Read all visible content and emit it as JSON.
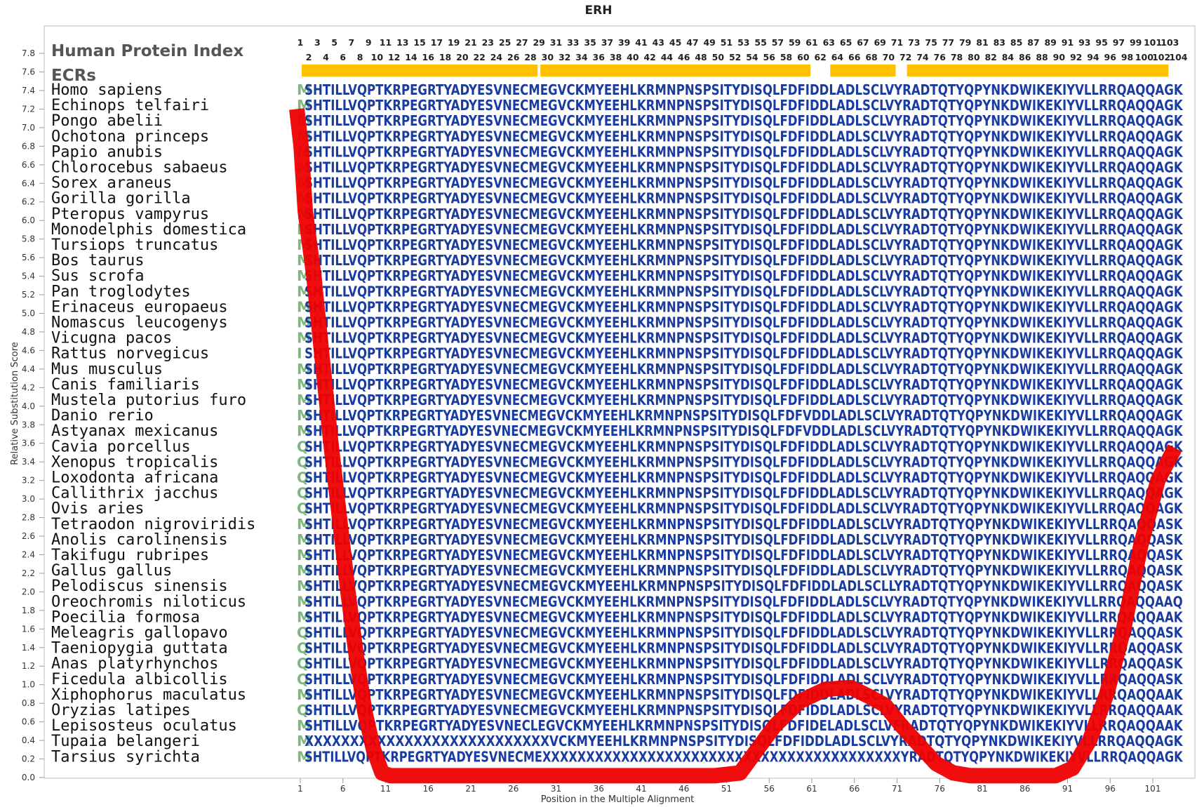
{
  "chart_data": {
    "type": "line",
    "title": "ERH",
    "xlabel": "Position in the Multiple Alignment",
    "ylabel": "Relative Substitution Score",
    "ylim": [
      0.0,
      7.8
    ],
    "xlim": [
      1,
      104
    ],
    "y_ticks": [
      "0.0",
      "0.2",
      "0.4",
      "0.6",
      "0.8",
      "1.0",
      "1.2",
      "1.4",
      "1.6",
      "1.8",
      "2.0",
      "2.2",
      "2.4",
      "2.6",
      "2.8",
      "3.0",
      "3.2",
      "3.4",
      "3.6",
      "3.8",
      "4.0",
      "4.2",
      "4.4",
      "4.6",
      "4.8",
      "5.0",
      "5.2",
      "5.4",
      "5.6",
      "5.8",
      "6.0",
      "6.2",
      "6.4",
      "6.6",
      "6.8",
      "7.0",
      "7.2",
      "7.4",
      "7.6",
      "7.8"
    ],
    "x_ticks": [
      "1",
      "6",
      "11",
      "16",
      "21",
      "26",
      "31",
      "36",
      "41",
      "46",
      "51",
      "56",
      "61",
      "66",
      "71",
      "76",
      "81",
      "86",
      "91",
      "96",
      "101"
    ],
    "index_row_top": [
      "1",
      "3",
      "5",
      "7",
      "9",
      "11",
      "13",
      "15",
      "17",
      "19",
      "21",
      "23",
      "25",
      "27",
      "29",
      "31",
      "33",
      "35",
      "37",
      "39",
      "41",
      "43",
      "45",
      "47",
      "49",
      "51",
      "53",
      "55",
      "57",
      "59",
      "61",
      "63",
      "65",
      "67",
      "69",
      "71",
      "73",
      "75",
      "77",
      "79",
      "81",
      "83",
      "85",
      "87",
      "89",
      "91",
      "93",
      "95",
      "97",
      "99",
      "101",
      "103"
    ],
    "index_row_bottom": [
      "2",
      "4",
      "6",
      "8",
      "10",
      "12",
      "14",
      "16",
      "18",
      "20",
      "22",
      "24",
      "26",
      "28",
      "30",
      "32",
      "34",
      "36",
      "38",
      "40",
      "42",
      "44",
      "46",
      "48",
      "50",
      "52",
      "54",
      "56",
      "58",
      "60",
      "62",
      "64",
      "66",
      "68",
      "70",
      "72",
      "74",
      "76",
      "78",
      "80",
      "82",
      "84",
      "86",
      "88",
      "90",
      "92",
      "94",
      "96",
      "98",
      "100",
      "102",
      "104"
    ],
    "header_index_label": "Human Protein Index",
    "header_ecr_label": "ECRs",
    "ecr_segments": [
      [
        1,
        28
      ],
      [
        29,
        60
      ],
      [
        63,
        70
      ],
      [
        72,
        102
      ]
    ],
    "series": [
      {
        "values_x": [
          1,
          1.5,
          2,
          3,
          4,
          5,
          6,
          7,
          8,
          9,
          10,
          11,
          12,
          14,
          20,
          30,
          40,
          50,
          53,
          55,
          57,
          60,
          63,
          66,
          68,
          70,
          72,
          74,
          76,
          78,
          80,
          82,
          86,
          90,
          92,
          94,
          96,
          98,
          100,
          102,
          104
        ],
        "values_y": [
          7.2,
          6.8,
          6.1,
          5.4,
          4.5,
          3.6,
          2.8,
          2.0,
          1.3,
          0.7,
          0.3,
          0.05,
          0.02,
          0.02,
          0.02,
          0.02,
          0.02,
          0.02,
          0.05,
          0.3,
          0.55,
          0.82,
          0.95,
          0.97,
          0.88,
          0.78,
          0.55,
          0.35,
          0.15,
          0.05,
          0.02,
          0.02,
          0.02,
          0.02,
          0.1,
          0.4,
          0.9,
          1.6,
          2.5,
          3.2,
          3.55
        ]
      }
    ],
    "species": [
      {
        "name": "Homo sapiens",
        "first": "M",
        "seq": "SHTILLVQPTKRPEGRTYADYESVNECMEGVCKMYEEHLKRMNPNSPSITYDISQLFDFIDDLADLSCLVYRADTQTYQPYNKDWIKEKIYVLLRRQAQQAGK"
      },
      {
        "name": "Echinops telfairi",
        "first": "M",
        "seq": "SHTILLVQPTKRPEGRTYADYESVNECMEGVCKMYEEHLKRMNPNSPSITYDISQLFDFIDDLADLSCLVYRADTQTYQPYNKDWIKEKIYVLLRRQAQQAGK"
      },
      {
        "name": "Pongo abelii",
        "first": "M",
        "seq": "SHTILLVQPTKRPEGRTYADYESVNECMEGVCKMYEEHLKRMNPNSPSITYDISQLFDFIDDLADLSCLVYRADTQTYQPYNKDWIKEKIYVLLRRQAQQAGK"
      },
      {
        "name": "Ochotona princeps",
        "first": "M",
        "seq": "SHTILLVQPTKRPEGRTYADYESVNECMEGVCKMYEEHLKRMNPNSPSITYDISQLFDFIDDLADLSCLVYRADTQTYQPYNKDWIKEKIYVLLRRQAQQAGK"
      },
      {
        "name": "Papio anubis",
        "first": "M",
        "seq": "SHTILLVQPTKRPEGRTYADYESVNECMEGVCKMYEEHLKRMNPNSPSITYDISQLFDFIDDLADLSCLVYRADTQTYQPYNKDWIKEKIYVLLRRQAQQAGK"
      },
      {
        "name": "Chlorocebus sabaeus",
        "first": "M",
        "seq": "SHTILLVQPTKRPEGRTYADYESVNECMEGVCKMYEEHLKRMNPNSPSITYDISQLFDFIDDLADLSCLVYRADTQTYQPYNKDWIKEKIYVLLRRQAQQAGK"
      },
      {
        "name": "Sorex araneus",
        "first": "M",
        "seq": "SHTILLVQPTKRPEGRTYADYESVNECMEGVCKMYEEHLKRMNPNSPSITYDISQLFDFIDDLADLSCLVYRADTQTYQPYNKDWIKEKIYVLLRRQAQQAGK"
      },
      {
        "name": "Gorilla gorilla",
        "first": "M",
        "seq": "SHTILLVQPTKRPEGRTYADYESVNECMEGVCKMYEEHLKRMNPNSPSITYDISQLFDFIDDLADLSCLVYRADTQTYQPYNKDWIKEKIYVLLRRQAQQAGK"
      },
      {
        "name": "Pteropus vampyrus",
        "first": "M",
        "seq": "SHTILLVQPTKRPEGRTYADYESVNECMEGVCKMYEEHLKRMNPNSPSITYDISQLFDFIDDLADLSCLVYRADTQTYQPYNKDWIKEKIYVLLRRQAQQAGK"
      },
      {
        "name": "Monodelphis domestica",
        "first": "M",
        "seq": "SHTILLVQPTKRPEGRTYADYESVNECMEGVCKMYEEHLKRMNPNSPSITYDISQLFDFIDDLADLSCLVYRADTQTYQPYNKDWIKEKIYVLLRRQAQQAGK"
      },
      {
        "name": "Tursiops truncatus",
        "first": "M",
        "seq": "SHTILLVQPTKRPEGRTYADYESVNECMEGVCKMYEEHLKRMNPNSPSITYDISQLFDFIDDLADLSCLVYRADTQTYQPYNKDWIKEKIYVLLRRQAQQAGK"
      },
      {
        "name": "Bos taurus",
        "first": "M",
        "seq": "SHTILLVQPTKRPEGRTYADYESVNECMEGVCKMYEEHLKRMNPNSPSITYDISQLFDFIDDLADLSCLVYRADTQTYQPYNKDWIKEKIYVLLRRQAQQAGK"
      },
      {
        "name": "Sus scrofa",
        "first": "M",
        "seq": "SHTILLVQPTKRPEGRTYADYESVNECMEGVCKMYEEHLKRMNPNSPSITYDISQLFDFIDDLADLSCLVYRADTQTYQPYNKDWIKEKIYVLLRRQAQQAGK"
      },
      {
        "name": "Pan troglodytes",
        "first": "M",
        "seq": "SHTILLVQPTKRPEGRTYADYESVNECMEGVCKMYEEHLKRMNPNSPSITYDISQLFDFIDDLADLSCLVYRADTQTYQPYNKDWIKEKIYVLLRRQAQQAGK"
      },
      {
        "name": "Erinaceus europaeus",
        "first": "M",
        "seq": "SHTILLVQPTKRPEGRTYADYESVNECMEGVCKMYEEHLKRMNPNSPSITYDISQLFDFIDDLADLSCLVYRADTQTYQPYNKDWIKEKIYVLLRRQAQQAGK"
      },
      {
        "name": "Nomascus leucogenys",
        "first": "M",
        "seq": "SHTILLVQPTKRPEGRTYADYESVNECMEGVCKMYEEHLKRMNPNSPSITYDISQLFDFIDDLADLSCLVYRADTQTYQPYNKDWIKEKIYVLLRRQAQQAGK"
      },
      {
        "name": "Vicugna pacos",
        "first": "M",
        "seq": "SHTILLVQPTKRPEGRTYADYESVNECMEGVCKMYEEHLKRMNPNSPSITYDISQLFDFIDDLADLSCLVYRADTQTYQPYNKDWIKEKIYVLLRRQAQQAGK"
      },
      {
        "name": "Rattus norvegicus",
        "first": "I",
        "seq": "SHTILLVQPTKRPEGRTYADYESVNECMEGVCKMYEEHLKRMNPNSPSITYDISQLFDFIDDLADLSCLVYRADTQTYQPYNKDWIKEKIYVLLRRQAQQAGK"
      },
      {
        "name": "Mus musculus",
        "first": "M",
        "seq": "SHTILLVQPTKRPEGRTYADYESVNECMEGVCKMYEEHLKRMNPNSPSITYDISQLFDFIDDLADLSCLVYRADTQTYQPYNKDWIKEKIYVLLRRQAQQAGK"
      },
      {
        "name": "Canis familiaris",
        "first": "M",
        "seq": "SHTILLVQPTKRPEGRTYADYESVNECMEGVCKMYEEHLKRMNPNSPSITYDISQLFDFIDDLADLSCLVYRADTQTYQPYNKDWIKEKIYVLLRRQAQQAGK"
      },
      {
        "name": "Mustela putorius furo",
        "first": "M",
        "seq": "SHTILLVQPTKRPEGRTYADYESVNECMEGVCKMYEEHLKRMNPNSPSITYDISQLFDFIDDLADLSCLVYRADTQTYQPYNKDWIKEKIYVLLRRQAQQAGK"
      },
      {
        "name": "Danio rerio",
        "first": "M",
        "seq": "SHTILLVQPTKRPEGRTYADYESVNECMEGVCKMYEEHLKRMNPNSPSITYDISQLFDFVDDLADLSCLVYRADTQTYQPYNKDWIKEKIYVLLRRQAQQAGK"
      },
      {
        "name": "Astyanax mexicanus",
        "first": "M",
        "seq": "SHTILLVQPTKRPEGRTYADYESVNECMEGVCKMYEEHLKRMNPNSPSITYDISQLFDFVDDLADLSCLVYRADTQTYQPYNKDWIKEKIYVLLRRQAQQAGK"
      },
      {
        "name": "Cavia porcellus",
        "first": "Q",
        "seq": "SHTILLVQPTKRPEGRTYADYESVNECMEGVCKMYEEHLKRMNPNSPSITYDISQLFDFIDDLADLSCLVYRADTQTYQPYNKDWIKEKIYVLLRRQAQQAGK"
      },
      {
        "name": "Xenopus tropicalis",
        "first": "Q",
        "seq": "SHTILLVQPTKRPEGRTYADYESVNECMEGVCKMYEEHLKRMNPNSPSITYDISQLFDFIDDLADLSCLVYRADTQTYQPYNKDWIKEKIYVLLRRQAQQAGK"
      },
      {
        "name": "Loxodonta africana",
        "first": "Q",
        "seq": "SHTILLVQPTKRPEGRTYADYESVNECMEGVCKMYEEHLKRMNPNSPSITYDISQLFDFIDDLADLSCLVYRADTQTYQPYNKDWIKEKIYVLLRRQAQQAGK"
      },
      {
        "name": "Callithrix jacchus",
        "first": "Q",
        "seq": "SHTILLVQPTKRPEGRTYADYESVNECMEGVCKMYEEHLKRMNPNSPSITYDISQLFDFIDDLADLSCLVYRADTQTYQPYNKDWIKEKIYVLLRRQAQQAGK"
      },
      {
        "name": "Ovis aries",
        "first": "Q",
        "seq": "SHTILLVQPTKRPEGRTYADYESVNECMEGVCKMYEEHLKRMNPNSPSITYDISQLFDFIDDLADLSCLVYRADTQTYQPYNKDWIKEKIYVLLRRQAQQAGK"
      },
      {
        "name": "Tetraodon nigroviridis",
        "first": "M",
        "seq": "SHTILLVQPTKRPEGRTYADYESVNECMEGVCKMYEEHLKRMNPNSPSITYDISQLFDFIDDLADLSCLVYRADTQTYQPYNKDWIKEKIYVLLRRQAQQASK"
      },
      {
        "name": "Anolis carolinensis",
        "first": "M",
        "seq": "SHTILLVQPTKRPEGRTYADYESVNECMEGVCKMYEEHLKRMNPNSPSITYDISQLFDFIDDLADLSCLVYRADTQTYQPYNKDWIKEKIYVLLRRQAQQASK"
      },
      {
        "name": "Takifugu rubripes",
        "first": "M",
        "seq": "SHTILLVQPTKRPEGRTYADYESVNECMEGVCKMYEEHLKRMNPNSPSITYDISQLFDFIDDLADLSCLVYRADTQTYQPYNKDWIKEKIYVLLRRQAQQASK"
      },
      {
        "name": "Gallus gallus",
        "first": "M",
        "seq": "SHTILLVQPTKRPEGRTYADYESVNECMEGVCKMYEEHLKRMNPNSPSITYDISQLFDFIDDLADLSCLVYRADTQTYQPYNKDWIKEKIYVLLRRQAQQASK"
      },
      {
        "name": "Pelodiscus sinensis",
        "first": "M",
        "seq": "SHTILLVQPTKRPEGRTYADYESVNECMEGVCKMYEEHLKRMNPNSPSITYDISQLFDFIDDLADLSCLLYRADTQTYQPYNKDWIKEKIYVLLRRQAQQASK"
      },
      {
        "name": "Oreochromis niloticus",
        "first": "M",
        "seq": "SHTILLVQPTKRPEGRTYADYESVNECMEGVCKMYEEHLKRMNPNSPSITYDISQLFDFIDDLADLSCLVYRADTQTYQPYNKDWIKEKIYVLLRRQAQQAAQ"
      },
      {
        "name": "Poecilia formosa",
        "first": "M",
        "seq": "SHTILLVQPTKRPEGRTYADYESVNECMEGVCKMYEEHLKRMNPNSPSITYDISQLFDFIDDLADLSCLVYRADTQTYQPYNKDWIKEKIYVLLRRQAQQAAK"
      },
      {
        "name": "Meleagris gallopavo",
        "first": "Q",
        "seq": "SHTILLVQPTKRPEGRTYADYESVNECMEGVCKMYEEHLKRMNPNSPSITYDISQLFDFIDDLADLSCLVYRADTQTYQPYNKDWIKEKIYVLLRRQAQQASK"
      },
      {
        "name": "Taeniopygia guttata",
        "first": "Q",
        "seq": "SHTILLVQPTKRPEGRTYADYESVNECMEGVCKMYEEHLKRMNPNSPSITYDISQLFDFIDDLADLSCLVYRADTQTYQPYNKDWIKEKIYVLLRRQAQQASK"
      },
      {
        "name": "Anas platyrhynchos",
        "first": "Q",
        "seq": "SHTILLVQPTKRPEGRTYADYESVNECMEGVCKMYEEHLKRMNPNSPSITYDISQLFDFIDDLADLSCLVYRADTQTYQPYNKDWIKEKIYVLLRRQAQQASK"
      },
      {
        "name": "Ficedula albicollis",
        "first": "Q",
        "seq": "SHTILLVQPTKRPEGRTYADYESVNECMEGVCKMYEEHLKRMNPNSPSITYDISQLFDFIDDLADLSCLVYRADTQTYQPYNKDWIKEKIYVLLRRQAQQASK"
      },
      {
        "name": "Xiphophorus maculatus",
        "first": "M",
        "seq": "SHTILLVQPTKRPEGRTYADYESVNECMEGVCKMYEEHLKRMNPNSPSITYDISQLFDFIDDLADLSCLVYRADTQTYQPYNKDWIKEKIYVLLRRQAQQAAK"
      },
      {
        "name": "Oryzias latipes",
        "first": "Q",
        "seq": "SHTILLVQPTKRPEGRTYADYESVNECMEGVCKMYEEHLKRMNPNSPSITYDISQLFDFIDDLADLSCLVYRADTQTYQPYNKDWIKEKIYVLLRRQAQQAAK"
      },
      {
        "name": "Lepisosteus oculatus",
        "first": "M",
        "seq": "SHTILLVQPTKRPEGRTYADYESVNECLEGVCKMYEEHLKRMNPNSPSITYDISQLFDFIDELADLSCLVFRADTQTYQPYNKDWIKEKIYVLLRRQAQQAAK"
      },
      {
        "name": "Tupaia belangeri",
        "first": "M",
        "seq": "XXXXXXXXXXXXXXXXXXXXXXXXXXXVCKMYEEHLKRMNPNSPSITYDISQLFDFIDDLADLSCLVYRADTQTYQPYNKDWIKEKIYVLLRRQAQQAGK"
      },
      {
        "name": "Tarsius syrichta",
        "first": "M",
        "seq": "SHTILLVQPTKRPEGRTYADYESVNECMEXXXXXXXXXXXXXXXXXXXXXXXXXXXXXXXXXXXXXXXXXYRADTQTYQPYNKDWIKEKIYVLLRRQAQQAGK"
      }
    ],
    "colors": {
      "curve": "#ee0000",
      "ecr": "#ffc000",
      "seq": "#1a3ca0",
      "first_residue": "#7fb87f"
    },
    "grid": false
  }
}
